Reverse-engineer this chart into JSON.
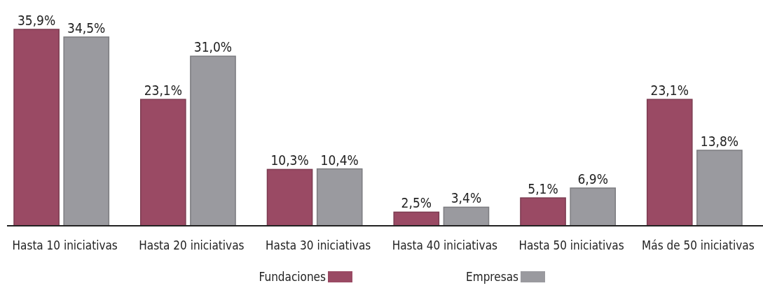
{
  "chart_data": {
    "type": "bar",
    "categories": [
      "Hasta 10 iniciativas",
      "Hasta 20 iniciativas",
      "Hasta 30 iniciativas",
      "Hasta 40 iniciativas",
      "Hasta 50 iniciativas",
      "Más de 50 iniciativas"
    ],
    "series": [
      {
        "name": "Fundaciones",
        "color": "#9a4a64",
        "values": [
          35.9,
          23.1,
          10.3,
          2.5,
          5.1,
          23.1
        ],
        "value_labels": [
          "35,9%",
          "23,1%",
          "10,3%",
          "2,5%",
          "5,1%",
          "23,1%"
        ]
      },
      {
        "name": "Empresas",
        "color": "#9a9a9f",
        "values": [
          34.5,
          31.0,
          10.4,
          3.4,
          6.9,
          13.8
        ],
        "value_labels": [
          "34,5%",
          "31,0%",
          "10,4%",
          "3,4%",
          "6,9%",
          "13,8%"
        ]
      }
    ],
    "legend": "bottom"
  }
}
